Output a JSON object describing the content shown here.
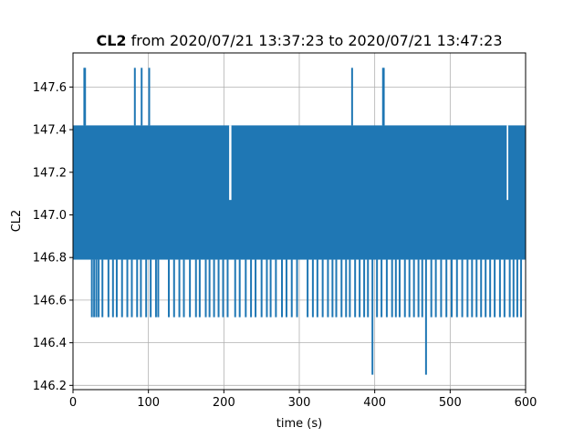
{
  "chart_data": {
    "type": "line",
    "title_bold": "CL2",
    "title_rest": " from 2020/07/21 13:37:23 to 2020/07/21 13:47:23",
    "xlabel": "time (s)",
    "ylabel": "CL2",
    "xlim": [
      0,
      600
    ],
    "ylim": [
      146.18,
      147.76
    ],
    "xticks": [
      0,
      100,
      200,
      300,
      400,
      500,
      600
    ],
    "yticks": [
      146.2,
      146.4,
      146.6,
      146.8,
      147.0,
      147.2,
      147.4,
      147.6
    ],
    "xtick_labels": [
      "0",
      "100",
      "200",
      "300",
      "400",
      "500",
      "600"
    ],
    "ytick_labels": [
      "146.2",
      "146.4",
      "146.6",
      "146.8",
      "147.0",
      "147.2",
      "147.4",
      "147.6"
    ],
    "grid": true,
    "line_color": "#1f77b4",
    "band": {
      "low": 146.79,
      "high": 147.42,
      "start": 0,
      "end": 600
    },
    "level_gaps_in_band": [
      {
        "start": 207,
        "end": 210,
        "low": 147.07,
        "high": 147.42
      },
      {
        "start": 575,
        "end": 577,
        "low": 147.07,
        "high": 147.42
      }
    ],
    "spikes_up": [
      {
        "x": 15,
        "value": 147.69
      },
      {
        "x": 16,
        "value": 147.69
      },
      {
        "x": 82,
        "value": 147.69
      },
      {
        "x": 91,
        "value": 147.69
      },
      {
        "x": 101,
        "value": 147.69
      },
      {
        "x": 370,
        "value": 147.69
      },
      {
        "x": 411,
        "value": 147.69
      },
      {
        "x": 412,
        "value": 147.69
      }
    ],
    "dips_down": [
      {
        "x": 25,
        "value": 146.52
      },
      {
        "x": 28,
        "value": 146.52
      },
      {
        "x": 31,
        "value": 146.52
      },
      {
        "x": 34,
        "value": 146.52
      },
      {
        "x": 39,
        "value": 146.52
      },
      {
        "x": 47,
        "value": 146.52
      },
      {
        "x": 53,
        "value": 146.52
      },
      {
        "x": 58,
        "value": 146.52
      },
      {
        "x": 65,
        "value": 146.52
      },
      {
        "x": 72,
        "value": 146.52
      },
      {
        "x": 78,
        "value": 146.52
      },
      {
        "x": 85,
        "value": 146.52
      },
      {
        "x": 90,
        "value": 146.52
      },
      {
        "x": 97,
        "value": 146.52
      },
      {
        "x": 103,
        "value": 146.52
      },
      {
        "x": 110,
        "value": 146.52
      },
      {
        "x": 113,
        "value": 146.52
      },
      {
        "x": 127,
        "value": 146.52
      },
      {
        "x": 134,
        "value": 146.52
      },
      {
        "x": 141,
        "value": 146.52
      },
      {
        "x": 147,
        "value": 146.52
      },
      {
        "x": 155,
        "value": 146.52
      },
      {
        "x": 163,
        "value": 146.52
      },
      {
        "x": 168,
        "value": 146.52
      },
      {
        "x": 176,
        "value": 146.52
      },
      {
        "x": 181,
        "value": 146.52
      },
      {
        "x": 187,
        "value": 146.52
      },
      {
        "x": 193,
        "value": 146.52
      },
      {
        "x": 199,
        "value": 146.52
      },
      {
        "x": 205,
        "value": 146.52
      },
      {
        "x": 215,
        "value": 146.52
      },
      {
        "x": 221,
        "value": 146.52
      },
      {
        "x": 229,
        "value": 146.52
      },
      {
        "x": 236,
        "value": 146.52
      },
      {
        "x": 242,
        "value": 146.52
      },
      {
        "x": 250,
        "value": 146.52
      },
      {
        "x": 257,
        "value": 146.52
      },
      {
        "x": 262,
        "value": 146.52
      },
      {
        "x": 269,
        "value": 146.52
      },
      {
        "x": 277,
        "value": 146.52
      },
      {
        "x": 283,
        "value": 146.52
      },
      {
        "x": 290,
        "value": 146.52
      },
      {
        "x": 297,
        "value": 146.52
      },
      {
        "x": 311,
        "value": 146.52
      },
      {
        "x": 318,
        "value": 146.52
      },
      {
        "x": 324,
        "value": 146.52
      },
      {
        "x": 331,
        "value": 146.52
      },
      {
        "x": 338,
        "value": 146.52
      },
      {
        "x": 344,
        "value": 146.52
      },
      {
        "x": 349,
        "value": 146.52
      },
      {
        "x": 356,
        "value": 146.52
      },
      {
        "x": 362,
        "value": 146.52
      },
      {
        "x": 367,
        "value": 146.52
      },
      {
        "x": 374,
        "value": 146.52
      },
      {
        "x": 380,
        "value": 146.52
      },
      {
        "x": 386,
        "value": 146.52
      },
      {
        "x": 391,
        "value": 146.52
      },
      {
        "x": 397,
        "value": 146.25
      },
      {
        "x": 403,
        "value": 146.52
      },
      {
        "x": 409,
        "value": 146.52
      },
      {
        "x": 416,
        "value": 146.52
      },
      {
        "x": 423,
        "value": 146.52
      },
      {
        "x": 428,
        "value": 146.52
      },
      {
        "x": 433,
        "value": 146.52
      },
      {
        "x": 440,
        "value": 146.52
      },
      {
        "x": 446,
        "value": 146.52
      },
      {
        "x": 452,
        "value": 146.52
      },
      {
        "x": 458,
        "value": 146.52
      },
      {
        "x": 463,
        "value": 146.52
      },
      {
        "x": 468,
        "value": 146.25
      },
      {
        "x": 475,
        "value": 146.52
      },
      {
        "x": 481,
        "value": 146.52
      },
      {
        "x": 488,
        "value": 146.52
      },
      {
        "x": 495,
        "value": 146.52
      },
      {
        "x": 502,
        "value": 146.52
      },
      {
        "x": 509,
        "value": 146.52
      },
      {
        "x": 516,
        "value": 146.52
      },
      {
        "x": 523,
        "value": 146.52
      },
      {
        "x": 529,
        "value": 146.52
      },
      {
        "x": 535,
        "value": 146.52
      },
      {
        "x": 541,
        "value": 146.52
      },
      {
        "x": 547,
        "value": 146.52
      },
      {
        "x": 553,
        "value": 146.52
      },
      {
        "x": 559,
        "value": 146.52
      },
      {
        "x": 566,
        "value": 146.52
      },
      {
        "x": 572,
        "value": 146.52
      },
      {
        "x": 579,
        "value": 146.52
      },
      {
        "x": 584,
        "value": 146.52
      },
      {
        "x": 589,
        "value": 146.52
      },
      {
        "x": 594,
        "value": 146.52
      }
    ]
  }
}
